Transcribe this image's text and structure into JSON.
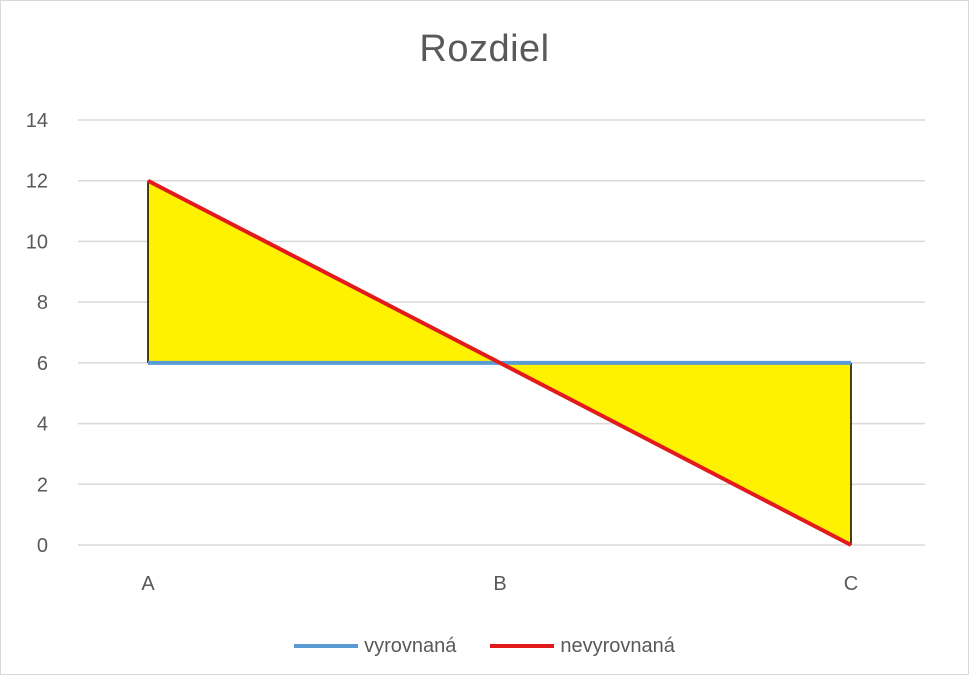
{
  "chart_data": {
    "type": "line",
    "title": "Rozdiel",
    "categories": [
      "A",
      "B",
      "C"
    ],
    "ylim": [
      0,
      14
    ],
    "yticks": [
      0,
      2,
      4,
      6,
      8,
      10,
      12,
      14
    ],
    "grid": true,
    "legend_position": "bottom",
    "series": [
      {
        "name": "vyrovnaná",
        "values": [
          6,
          6,
          6
        ],
        "color": "#5b9bd5"
      },
      {
        "name": "nevyrovnaná",
        "values": [
          12,
          6,
          0
        ],
        "color": "#e31a1c"
      }
    ],
    "difference_fill_color": "#fff200",
    "gridline_color": "#d9d9d9"
  }
}
